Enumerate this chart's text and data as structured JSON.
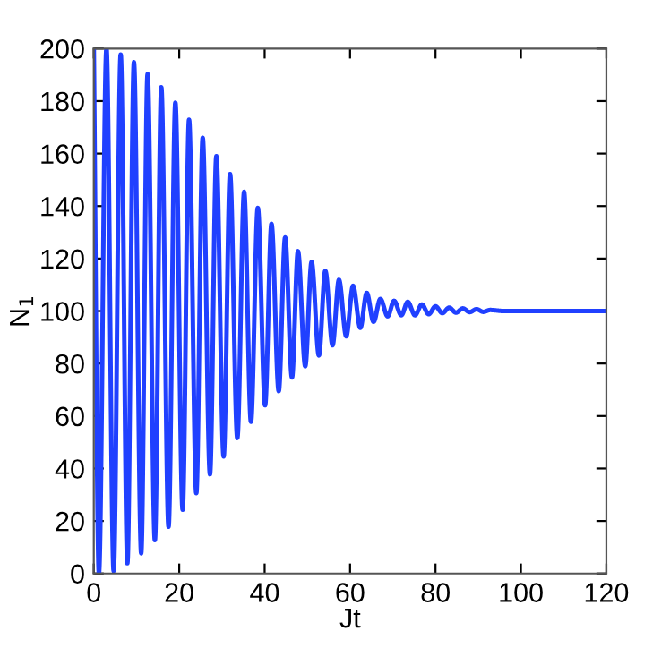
{
  "chart_data": {
    "type": "line",
    "xlabel": "Jt",
    "ylabel": "N$_{1}$",
    "xlim": [
      0,
      120
    ],
    "ylim": [
      0,
      200
    ],
    "xticks": [
      0,
      20,
      40,
      60,
      80,
      100,
      120
    ],
    "yticks": [
      0,
      20,
      40,
      60,
      80,
      100,
      120,
      140,
      160,
      180,
      200
    ],
    "grid": false,
    "legend": false,
    "series": [
      {
        "color": "#2040ff",
        "x": [
          0,
          1.2,
          2.97,
          4.65,
          6.3,
          7.86,
          9.4,
          11.1,
          12.6,
          14.3,
          15.8,
          17.5,
          19.1,
          20.8,
          22.3,
          24.0,
          25.5,
          27.2,
          28.7,
          30.4,
          31.9,
          33.6,
          35.2,
          36.8,
          38.4,
          40.1,
          41.6,
          43.3,
          44.8,
          46.4,
          47.8,
          49.5,
          51.0,
          52.7,
          54.2,
          55.9,
          57.4,
          59.1,
          60.7,
          62.4,
          63.9,
          65.5,
          67.1,
          68.8,
          70.3,
          72.0,
          73.5,
          75.2,
          76.8,
          78.4,
          80.0,
          81.6,
          83.2,
          84.8,
          86.4,
          88.0,
          89.6,
          91.2,
          92.8,
          96,
          100,
          104,
          108,
          112,
          116,
          120
        ],
        "values": [
          200,
          0,
          200,
          1,
          197.7,
          3.9,
          194.8,
          7.7,
          190.3,
          12.7,
          185.3,
          17.8,
          179.4,
          24.3,
          172.9,
          30.6,
          166,
          37.8,
          159,
          44.6,
          152.2,
          51.6,
          145.4,
          57.8,
          139.3,
          64.1,
          133.2,
          69.5,
          128,
          74.7,
          122.8,
          79,
          118.7,
          83.1,
          115.3,
          87,
          111.9,
          90.4,
          109.6,
          93.6,
          106.9,
          95.9,
          104.6,
          98,
          103.9,
          98.4,
          103.5,
          98.4,
          102.5,
          98.8,
          101.8,
          99.2,
          101.3,
          99.4,
          101,
          99.6,
          100.7,
          99.7,
          100.4,
          100,
          100,
          100,
          100,
          100,
          100,
          100
        ]
      }
    ]
  }
}
